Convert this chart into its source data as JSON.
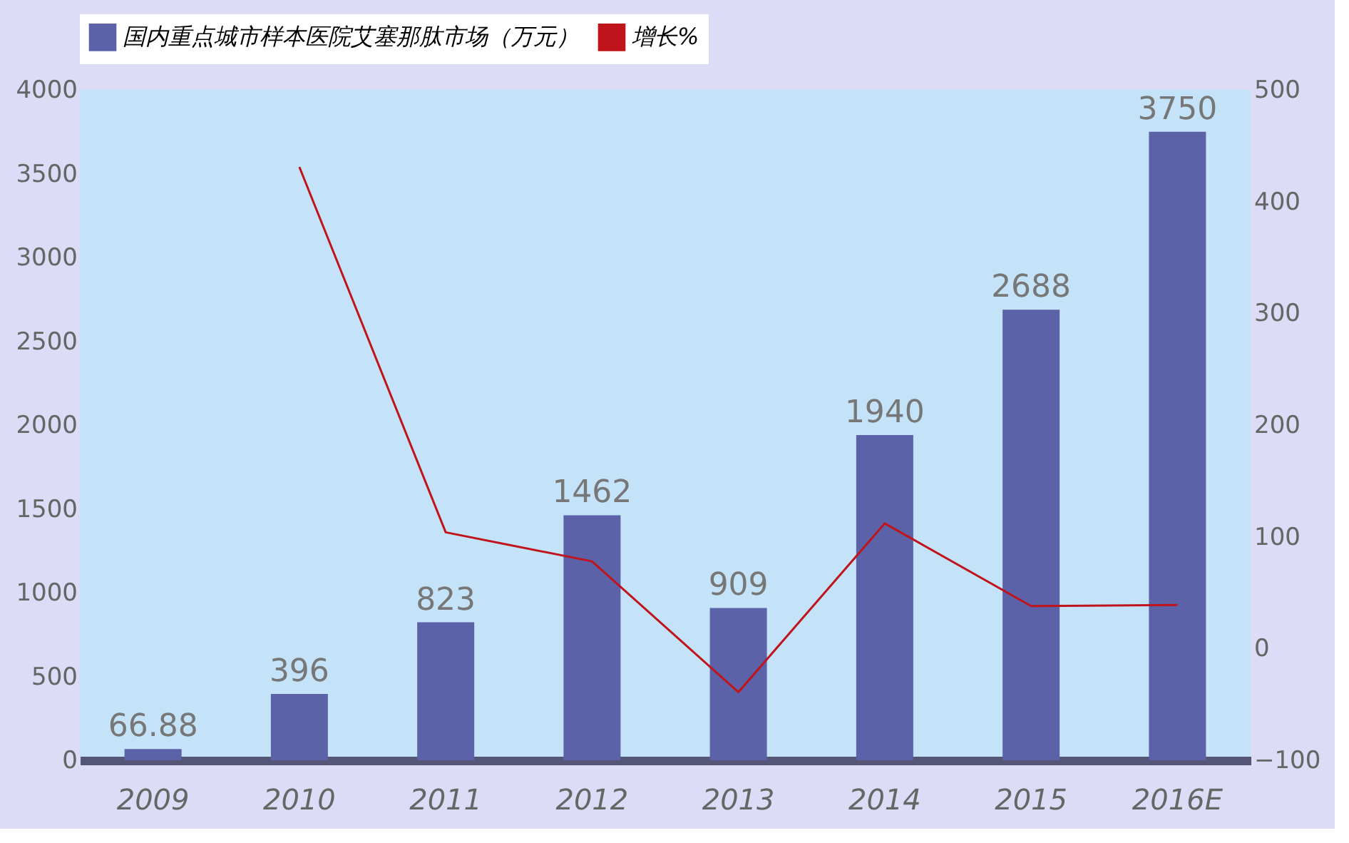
{
  "chart_data": {
    "type": "bar",
    "categories": [
      "2009",
      "2010",
      "2011",
      "2012",
      "2013",
      "2014",
      "2015",
      "2016E"
    ],
    "series": [
      {
        "name": "国内重点城市样本医院艾塞那肽市场（万元）",
        "color": "#5c62a8",
        "values": [
          66.88,
          396,
          823,
          1462,
          909,
          1940,
          2688,
          3750
        ]
      },
      {
        "name": "增长%",
        "type": "line",
        "axis": "y2",
        "color": "#c0141c",
        "values": [
          null,
          431,
          104,
          78,
          -39,
          112,
          38,
          39
        ]
      }
    ],
    "ylim": [
      0,
      4000
    ],
    "yticks": [
      0,
      500,
      1000,
      1500,
      2000,
      2500,
      3000,
      3500,
      4000
    ],
    "y2lim": [
      -100,
      500
    ],
    "y2ticks": [
      -100,
      0,
      100,
      200,
      300,
      400,
      500
    ],
    "value_labels": [
      "66.88",
      "396",
      "823",
      "1462",
      "909",
      "1940",
      "2688",
      "3750"
    ],
    "legend": "top",
    "grid": false,
    "marker": "none",
    "line_style": "solid"
  }
}
